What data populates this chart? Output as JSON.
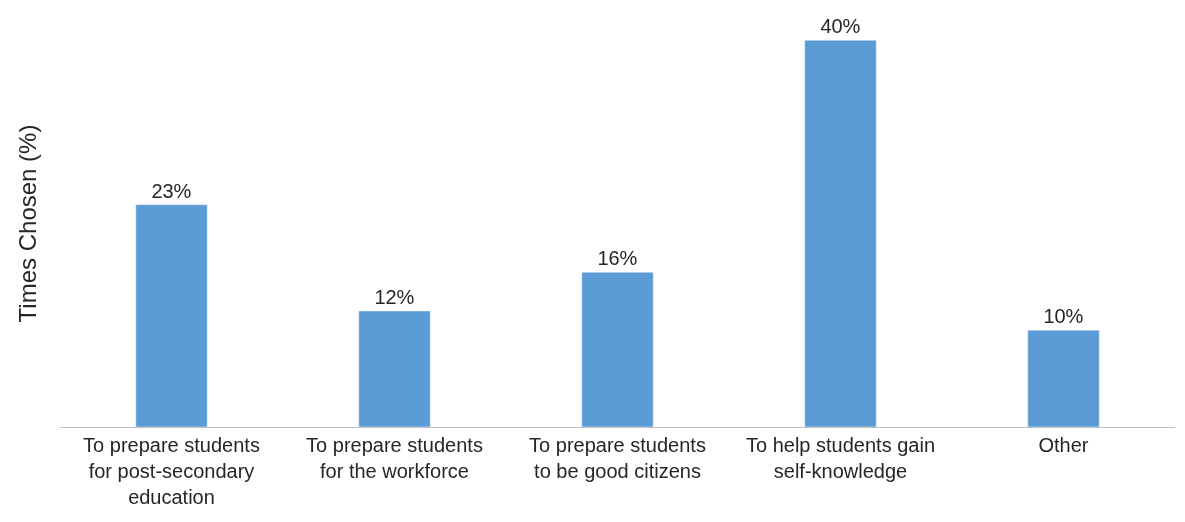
{
  "chart_data": {
    "type": "bar",
    "ylabel": "Times Chosen (%)",
    "categories": [
      "To prepare students for post-secondary education",
      "To prepare students for the workforce",
      "To prepare students to be good citizens",
      "To help students gain self-knowledge",
      "Other"
    ],
    "values": [
      23,
      12,
      16,
      40,
      10
    ],
    "value_labels": [
      "23%",
      "12%",
      "16%",
      "40%",
      "10%"
    ],
    "color": "#5b9bd5"
  }
}
